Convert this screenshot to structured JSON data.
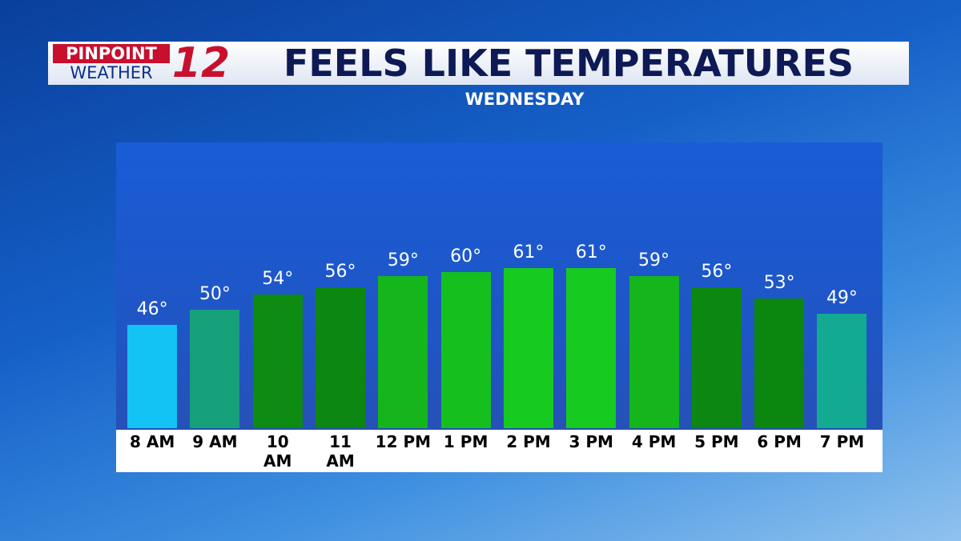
{
  "logo": {
    "line1": "PINPOINT",
    "line2": "WEATHER",
    "number": "12"
  },
  "chart_data": {
    "type": "bar",
    "title": "FEELS LIKE TEMPERATURES",
    "subtitle": "WEDNESDAY",
    "categories": [
      "8 AM",
      "9 AM",
      "10 AM",
      "11 AM",
      "12 PM",
      "1 PM",
      "2 PM",
      "3 PM",
      "4 PM",
      "5 PM",
      "6 PM",
      "7 PM"
    ],
    "values": [
      46,
      50,
      54,
      56,
      59,
      60,
      61,
      61,
      59,
      56,
      53,
      49
    ],
    "value_labels": [
      "46°",
      "50°",
      "54°",
      "56°",
      "59°",
      "60°",
      "61°",
      "61°",
      "59°",
      "56°",
      "53°",
      "49°"
    ],
    "colors": [
      "#12c3f4",
      "#15a07a",
      "#0d8a12",
      "#0c8712",
      "#14b61c",
      "#15c01e",
      "#16ca20",
      "#16ca20",
      "#14b61c",
      "#0c8712",
      "#0b860f",
      "#13aa92"
    ],
    "ylim": [
      19,
      94
    ]
  }
}
